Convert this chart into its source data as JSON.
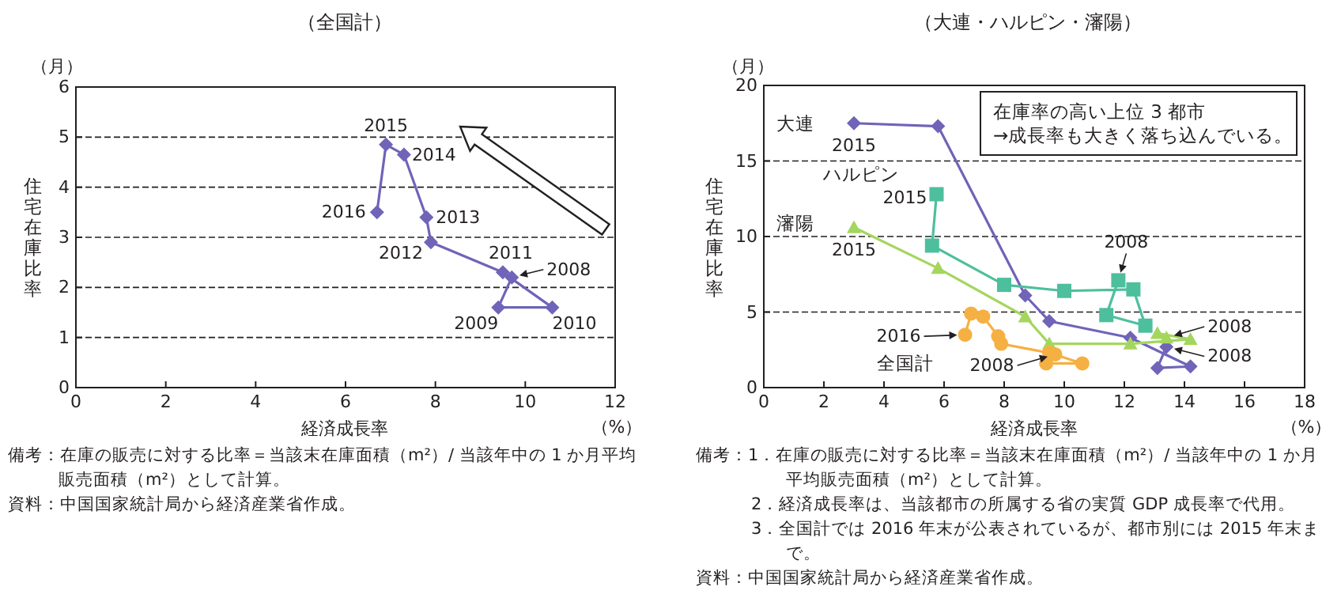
{
  "chart_data": [
    {
      "type": "line",
      "title": "（全国計）",
      "xlabel": "経済成長率",
      "ylabel": "住宅在庫比率",
      "xlim": [
        0,
        12
      ],
      "ylim": [
        0,
        6
      ],
      "xticks": [
        0,
        2,
        4,
        6,
        8,
        10,
        12
      ],
      "yticks": [
        0,
        1,
        2,
        3,
        4,
        5,
        6
      ],
      "grid": "y",
      "marker": "diamond",
      "series": [
        {
          "color": "#6f64b8",
          "x": [
            9.7,
            9.4,
            10.6,
            9.5,
            7.9,
            7.8,
            7.3,
            6.9,
            6.7
          ],
          "values": [
            2.2,
            1.6,
            1.6,
            2.3,
            2.9,
            3.4,
            4.65,
            4.85,
            3.5
          ]
        }
      ],
      "annotations": [
        "（月）",
        "（%）",
        {
          "text": "2008",
          "x": 9.7,
          "y": 2.2
        },
        {
          "text": "2009",
          "x": 9.4,
          "y": 1.6
        },
        {
          "text": "2010",
          "x": 10.6,
          "y": 1.6
        },
        {
          "text": "2011",
          "x": 9.5,
          "y": 2.3
        },
        {
          "text": "2012",
          "x": 7.9,
          "y": 2.9
        },
        {
          "text": "2013",
          "x": 7.8,
          "y": 3.4
        },
        {
          "text": "2014",
          "x": 7.3,
          "y": 4.65
        },
        {
          "text": "2015",
          "x": 6.9,
          "y": 4.85
        },
        {
          "text": "2016",
          "x": 6.7,
          "y": 3.5
        },
        "備考：在庫の販売に対する比率＝当該末在庫面積（m²）/ 当該年中の 1 か月平均販売面積（m²）として計算。",
        "資料：中国国家統計局から経済産業省作成。"
      ]
    },
    {
      "type": "line",
      "title": "（大連・ハルピン・瀋陽）",
      "xlabel": "経済成長率",
      "ylabel": "住宅在庫比率",
      "xlim": [
        0,
        18
      ],
      "ylim": [
        0,
        20
      ],
      "xticks": [
        0,
        2,
        4,
        6,
        8,
        10,
        12,
        14,
        16,
        18
      ],
      "yticks": [
        0,
        5,
        10,
        15,
        20
      ],
      "grid": "y",
      "series": [
        {
          "name": "大連",
          "color": "#6f64b8",
          "marker": "diamond",
          "x": [
            13.4,
            13.1,
            14.2,
            12.2,
            9.5,
            8.7,
            5.8,
            3.0
          ],
          "values": [
            2.7,
            1.3,
            1.4,
            3.3,
            4.4,
            6.1,
            17.3,
            17.5
          ]
        },
        {
          "name": "ハルピン",
          "color": "#4dbf9c",
          "marker": "square",
          "x": [
            11.8,
            11.4,
            12.7,
            12.3,
            10.0,
            8.0,
            5.6,
            5.75
          ],
          "values": [
            7.1,
            4.8,
            4.1,
            6.5,
            6.4,
            6.8,
            9.4,
            12.8
          ]
        },
        {
          "name": "瀋陽",
          "color": "#a4d65e",
          "marker": "triangle",
          "x": [
            13.4,
            13.1,
            14.2,
            12.2,
            9.5,
            8.7,
            5.8,
            3.0
          ],
          "values": [
            3.3,
            3.6,
            3.2,
            2.9,
            2.9,
            4.7,
            7.9,
            10.6
          ]
        },
        {
          "name": "全国計",
          "color": "#f5b043",
          "marker": "circle",
          "x": [
            9.7,
            9.4,
            10.6,
            9.5,
            7.9,
            7.8,
            7.3,
            6.9,
            6.7
          ],
          "values": [
            2.2,
            1.6,
            1.6,
            2.3,
            2.9,
            3.4,
            4.7,
            4.9,
            3.5
          ]
        }
      ],
      "annotations": [
        "（月）",
        "（%）",
        "在庫率の高い上位 3 都市\n→成長率も大きく落ち込んでいる。",
        {
          "text": "2015",
          "x": 3.0,
          "y": 17.5
        },
        {
          "text": "2015",
          "x": 5.75,
          "y": 12.8
        },
        {
          "text": "2015",
          "x": 3.0,
          "y": 10.6
        },
        {
          "text": "2008",
          "x": 13.4,
          "y": 2.7
        },
        {
          "text": "2008",
          "x": 11.8,
          "y": 7.1
        },
        {
          "text": "2008",
          "x": 13.4,
          "y": 3.3
        },
        {
          "text": "2016",
          "x": 6.7,
          "y": 3.5
        },
        {
          "text": "2008",
          "x": 9.7,
          "y": 2.2
        },
        "備考：1．在庫の販売に対する比率＝当該末在庫面積（m²）/ 当該年中の 1 か月平均販売面積（m²）として計算。",
        "2．経済成長率は、当該都市の所属する省の実質 GDP 成長率で代用。",
        "3．全国計では 2016 年末が公表されているが、都市別には 2015 年末まで。",
        "資料：中国国家統計局から経済産業省作成。"
      ]
    }
  ]
}
